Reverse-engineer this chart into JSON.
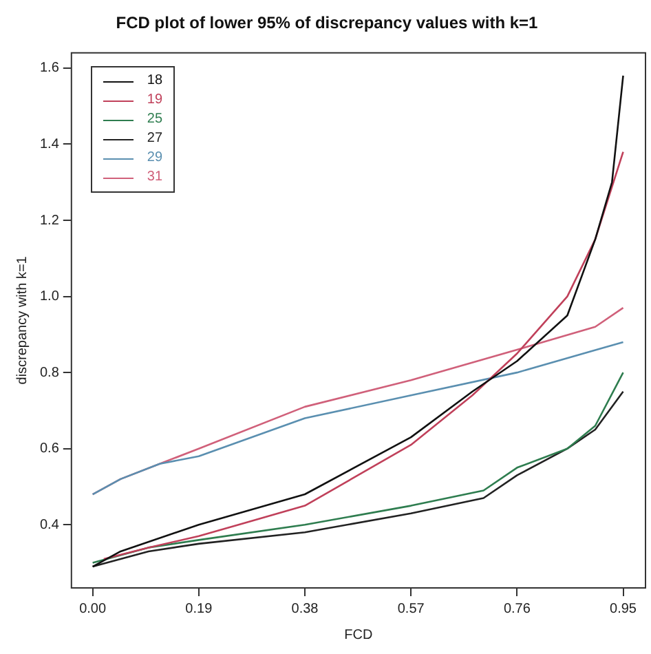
{
  "chart_data": {
    "type": "line",
    "title": "FCD plot of lower 95% of discrepancy values with k=1",
    "xlabel": "FCD",
    "ylabel": "discrepancy with k=1",
    "xlim": [
      -0.038,
      0.99
    ],
    "xticks": [
      {
        "value": 0,
        "label": "0.00"
      },
      0.19,
      0.38,
      0.57,
      0.76,
      0.95
    ],
    "ylim": [
      0.234,
      1.64
    ],
    "yticks": [
      0.4,
      0.6,
      0.8,
      {
        "value": 1,
        "label": "1.0"
      },
      1.2,
      1.4,
      1.6
    ],
    "grid": false,
    "legend": "top left",
    "marker": "none",
    "line_style": "solid",
    "series": [
      {
        "name": "18",
        "color": "#111111",
        "x": [
          0,
          0.05,
          0.19,
          0.38,
          0.57,
          0.68,
          0.76,
          0.85,
          0.9,
          0.93,
          0.95
        ],
        "values": [
          0.29,
          0.33,
          0.4,
          0.48,
          0.63,
          0.75,
          0.83,
          0.95,
          1.15,
          1.3,
          1.58
        ]
      },
      {
        "name": "19",
        "color": "#c0405a",
        "x": [
          0.02,
          0.1,
          0.19,
          0.38,
          0.57,
          0.68,
          0.76,
          0.85,
          0.9,
          0.95
        ],
        "values": [
          0.31,
          0.34,
          0.37,
          0.45,
          0.61,
          0.74,
          0.85,
          1.0,
          1.15,
          1.38
        ]
      },
      {
        "name": "25",
        "color": "#2e7d4f",
        "x": [
          0,
          0.1,
          0.19,
          0.38,
          0.57,
          0.7,
          0.76,
          0.85,
          0.9,
          0.95
        ],
        "values": [
          0.3,
          0.34,
          0.36,
          0.4,
          0.45,
          0.49,
          0.55,
          0.6,
          0.66,
          0.8
        ]
      },
      {
        "name": "27",
        "color": "#222222",
        "x": [
          0,
          0.1,
          0.19,
          0.38,
          0.57,
          0.7,
          0.76,
          0.85,
          0.9,
          0.95
        ],
        "values": [
          0.29,
          0.33,
          0.35,
          0.38,
          0.43,
          0.47,
          0.53,
          0.6,
          0.65,
          0.75
        ]
      },
      {
        "name": "29",
        "color": "#5a8fb0",
        "x": [
          0,
          0.05,
          0.12,
          0.19,
          0.38,
          0.57,
          0.76,
          0.95
        ],
        "values": [
          0.48,
          0.52,
          0.56,
          0.58,
          0.68,
          0.74,
          0.8,
          0.88
        ]
      },
      {
        "name": "31",
        "color": "#d0607a",
        "x": [
          0,
          0.05,
          0.12,
          0.19,
          0.38,
          0.57,
          0.76,
          0.9,
          0.95
        ],
        "values": [
          0.48,
          0.52,
          0.56,
          0.6,
          0.71,
          0.78,
          0.86,
          0.92,
          0.97
        ]
      }
    ]
  }
}
